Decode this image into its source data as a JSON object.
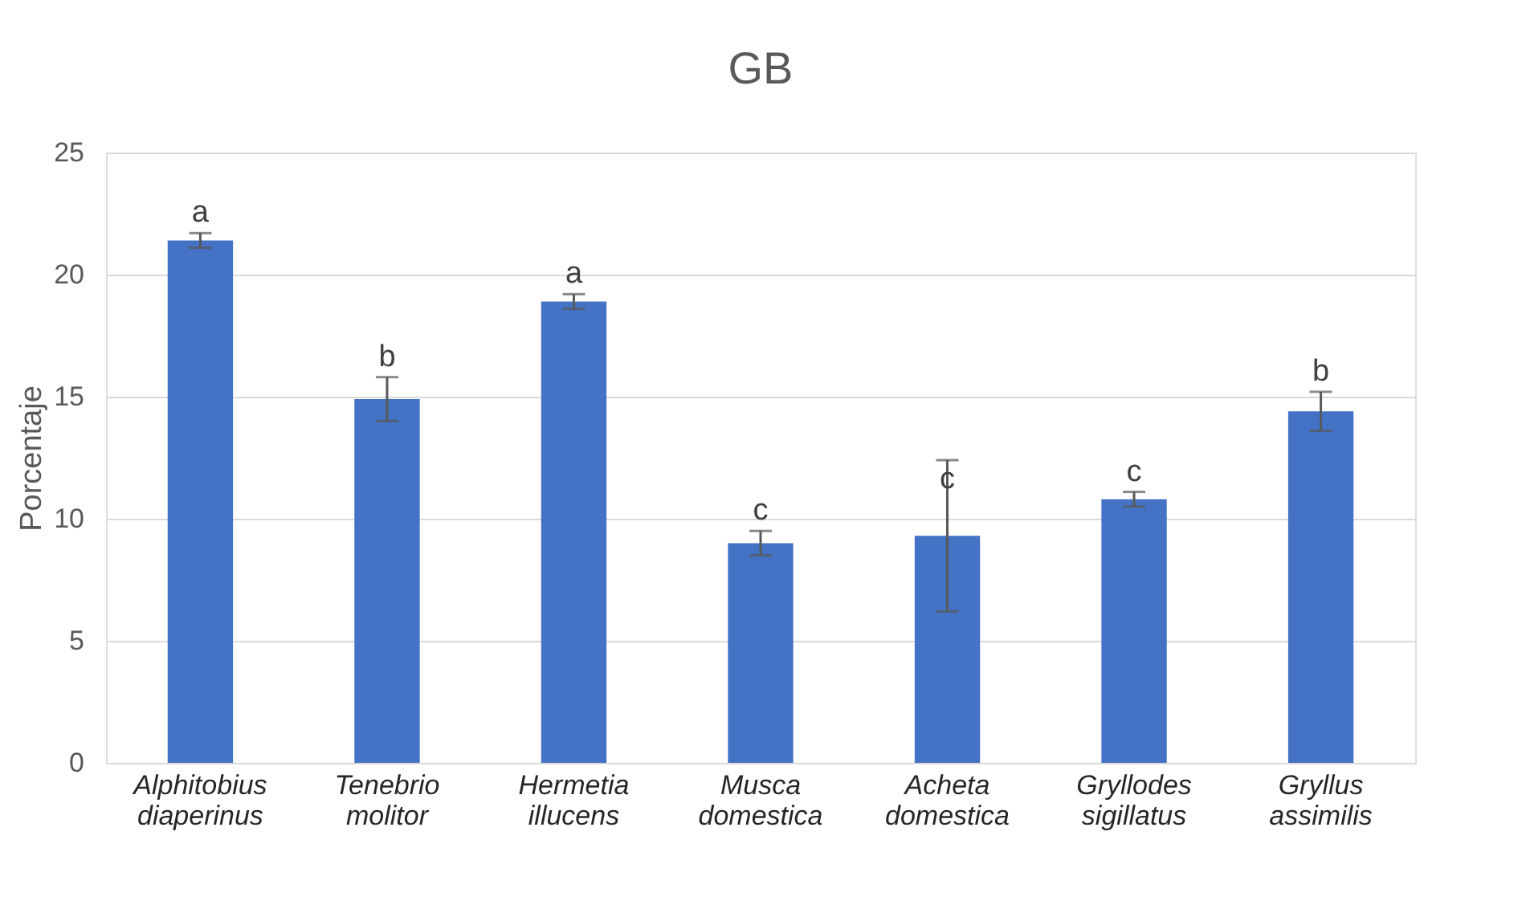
{
  "chart_data": {
    "type": "bar",
    "title": "GB",
    "ylabel": "Porcentaje",
    "categories": [
      "Alphitobius diaperinus",
      "Tenebrio molitor",
      "Hermetia illucens",
      "Musca domestica",
      "Acheta domestica",
      "Gryllodes sigillatus",
      "Gryllus assimilis"
    ],
    "values": [
      21.4,
      14.9,
      18.9,
      9.0,
      9.3,
      10.8,
      14.4
    ],
    "errors": [
      0.3,
      0.9,
      0.3,
      0.5,
      3.1,
      0.3,
      0.8
    ],
    "color": "#4472c4",
    "ylim": [
      0,
      25
    ],
    "yticks": [
      0,
      5,
      10,
      15,
      20,
      25
    ],
    "grid": "y",
    "annotations": [
      {
        "text": "a",
        "x": "Alphitobius diaperinus",
        "y": 21.7
      },
      {
        "text": "b",
        "x": "Tenebrio molitor",
        "y": 15.8
      },
      {
        "text": "a",
        "x": "Hermetia illucens",
        "y": 19.2
      },
      {
        "text": "c",
        "x": "Musca domestica",
        "y": 9.5
      },
      {
        "text": "c",
        "x": "Acheta domestica",
        "y": 10.8
      },
      {
        "text": "c",
        "x": "Gryllodes sigillatus",
        "y": 11.1
      },
      {
        "text": "b",
        "x": "Gryllus assimilis",
        "y": 15.2
      }
    ]
  }
}
